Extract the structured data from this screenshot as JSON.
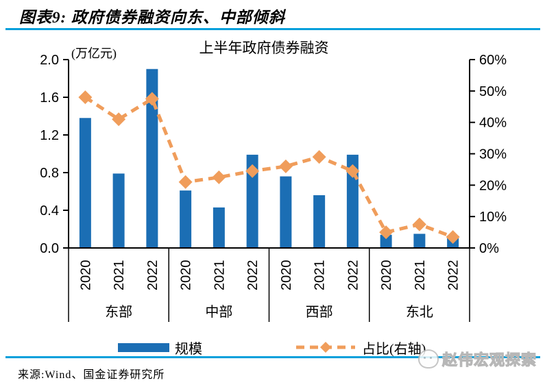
{
  "header": {
    "title": "图表9: 政府债券融资向东、中部倾斜"
  },
  "chart_data": {
    "type": "bar+line",
    "title": "上半年政府债券融资",
    "unit_label": "(万亿元)",
    "groups": [
      "东部",
      "中部",
      "西部",
      "东北"
    ],
    "years": [
      "2020",
      "2021",
      "2022"
    ],
    "bar_series": {
      "name": "规模",
      "axis": "left",
      "unit": "万亿元",
      "values": [
        [
          1.38,
          0.79,
          1.9
        ],
        [
          0.61,
          0.43,
          0.99
        ],
        [
          0.76,
          0.56,
          0.99
        ],
        [
          0.14,
          0.15,
          0.13
        ]
      ]
    },
    "line_series": {
      "name": "占比(右轴)",
      "axis": "right",
      "unit": "%",
      "values": [
        [
          48,
          41,
          47.5
        ],
        [
          21,
          22.5,
          24.5
        ],
        [
          26,
          29,
          24.5
        ],
        [
          5,
          7.5,
          3.5
        ]
      ]
    },
    "left_axis": {
      "min": 0,
      "max": 2.0,
      "ticks": [
        2.0,
        1.6,
        1.2,
        0.8,
        0.4,
        0.0
      ],
      "tick_labels": [
        "2.0",
        "1.6",
        "1.2",
        "0.8",
        "0.4",
        "0.0"
      ]
    },
    "right_axis": {
      "min": 0,
      "max": 60,
      "ticks": [
        60,
        50,
        40,
        30,
        20,
        10,
        0
      ],
      "tick_labels": [
        "60%",
        "50%",
        "40%",
        "30%",
        "20%",
        "10%",
        "0%"
      ]
    },
    "grid": false,
    "legend_position": "bottom"
  },
  "footer": {
    "source": "来源:Wind、国金证券研究所"
  },
  "watermark": {
    "text": "赵伟宏观探索"
  },
  "colors": {
    "bar": "#1B6EB4",
    "line": "#F09D5B",
    "divider": "#009FDB",
    "text": "#000000",
    "watermark": "#B7B7B7"
  }
}
